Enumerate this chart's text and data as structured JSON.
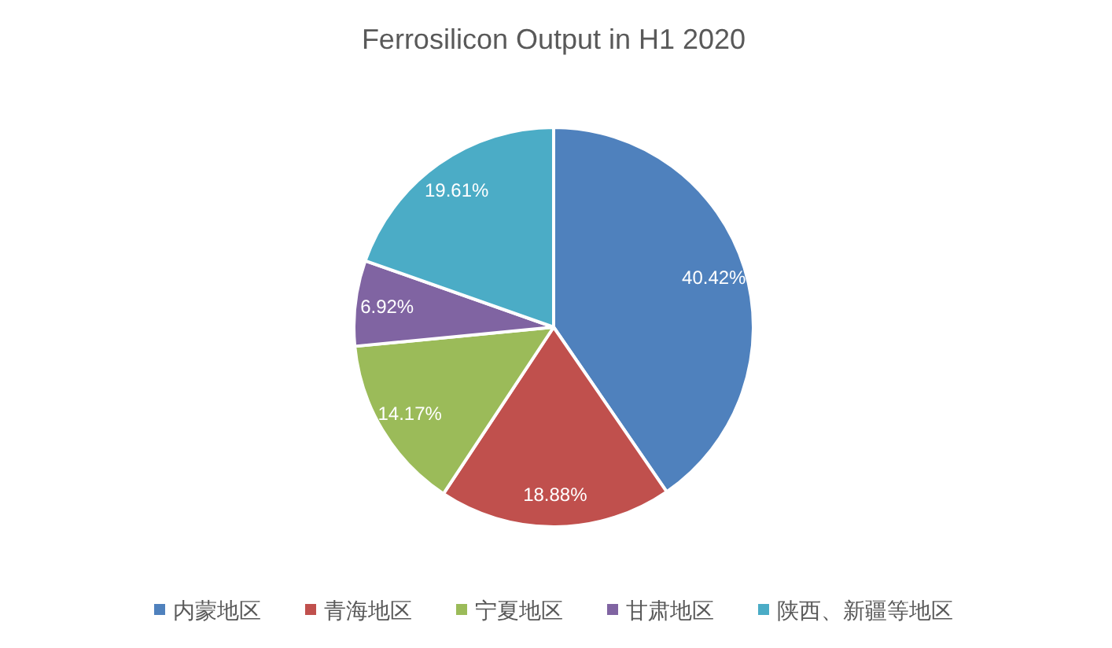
{
  "chart_data": {
    "type": "pie",
    "title": "Ferrosilicon Output in H1 2020",
    "categories": [
      "内蒙地区",
      "青海地区",
      "宁夏地区",
      "甘肃地区",
      "陕西、新疆等地区"
    ],
    "values": [
      40.42,
      18.88,
      14.17,
      6.92,
      19.61
    ],
    "colors": [
      "#4f81bd",
      "#c0504d",
      "#9bbb59",
      "#8064a2",
      "#4bacc6"
    ],
    "value_labels": [
      "40.42%",
      "18.88%",
      "14.17%",
      "6.92%",
      "19.61%"
    ],
    "legend": "bottom"
  }
}
